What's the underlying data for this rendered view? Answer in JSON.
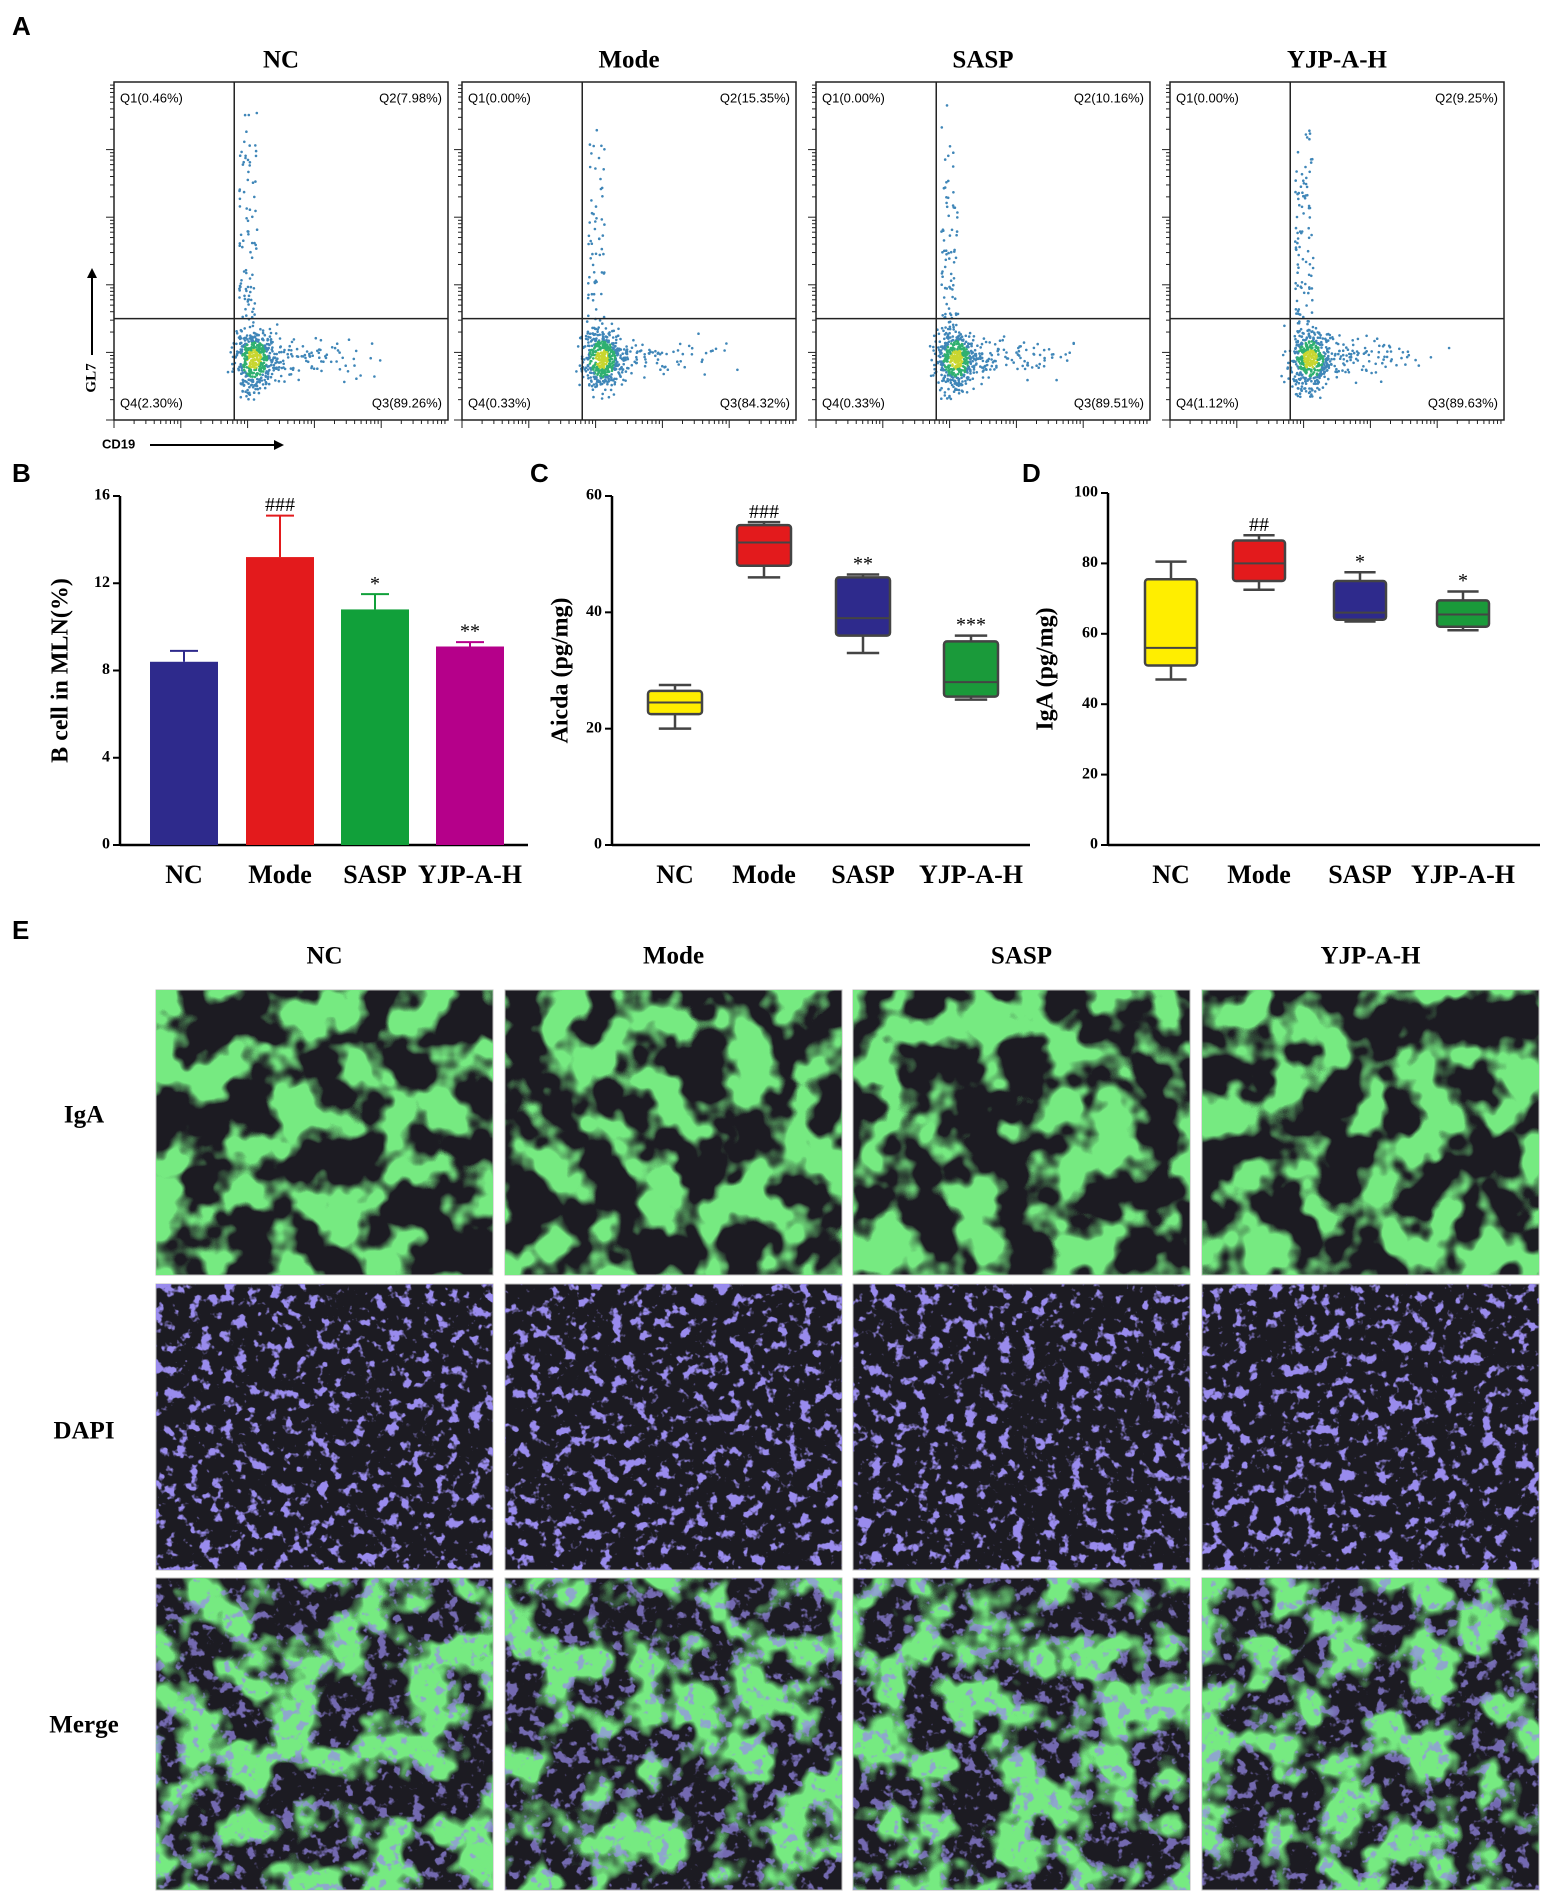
{
  "panels": [
    "A",
    "B",
    "C",
    "D",
    "E"
  ],
  "flow": {
    "groups": [
      "NC",
      "Mode",
      "SASP",
      "YJP-A-H"
    ],
    "y_label": "GL7",
    "x_label": "CD19",
    "quadrants": [
      [
        "Q1(0.46%)",
        "Q2(7.98%)",
        "Q3(89.26%)",
        "Q4(2.30%)"
      ],
      [
        "Q1(0.00%)",
        "Q2(15.35%)",
        "Q3(84.32%)",
        "Q4(0.33%)"
      ],
      [
        "Q1(0.00%)",
        "Q2(10.16%)",
        "Q3(89.51%)",
        "Q4(0.33%)"
      ],
      [
        "Q1(0.00%)",
        "Q2(9.25%)",
        "Q3(89.63%)",
        "Q4(1.12%)"
      ]
    ]
  },
  "chart_data": [
    {
      "type": "bar",
      "y_label": "B cell in MLN(%)",
      "categories": [
        "NC",
        "Mode",
        "SASP",
        "YJP-A-H"
      ],
      "values": [
        8.4,
        13.2,
        10.8,
        9.1
      ],
      "errors": [
        0.5,
        1.9,
        0.7,
        0.2
      ],
      "colors": [
        "#2e2a8c",
        "#e31a1c",
        "#11a03a",
        "#b5008a"
      ],
      "annotations": [
        null,
        "###",
        "*",
        "**"
      ],
      "ylim": [
        0,
        16
      ],
      "yticks": [
        0,
        4,
        8,
        12,
        16
      ]
    },
    {
      "type": "box",
      "y_label": "Aicda (pg/mg)",
      "categories": [
        "NC",
        "Mode",
        "SASP",
        "YJP-A-H"
      ],
      "values": [
        {
          "min": 20,
          "q1": 22.5,
          "median": 24.5,
          "q3": 26.5,
          "max": 27.5
        },
        {
          "min": 46,
          "q1": 48,
          "median": 52,
          "q3": 55,
          "max": 55.5
        },
        {
          "min": 33,
          "q1": 36,
          "median": 39,
          "q3": 46,
          "max": 46.5
        },
        {
          "min": 25,
          "q1": 25.5,
          "median": 28,
          "q3": 35,
          "max": 36
        }
      ],
      "colors": [
        "#ffee00",
        "#e31a1c",
        "#2e2a8c",
        "#1a9a3a"
      ],
      "annotations": [
        null,
        "###",
        "**",
        "***"
      ],
      "ylim": [
        0,
        60
      ],
      "yticks": [
        0,
        20,
        40,
        60
      ]
    },
    {
      "type": "box",
      "y_label": "IgA (pg/mg)",
      "categories": [
        "NC",
        "Mode",
        "SASP",
        "YJP-A-H"
      ],
      "values": [
        {
          "min": 47,
          "q1": 51,
          "median": 56,
          "q3": 75.5,
          "max": 80.5
        },
        {
          "min": 72.5,
          "q1": 75,
          "median": 80,
          "q3": 86.5,
          "max": 88
        },
        {
          "min": 63.5,
          "q1": 64,
          "median": 66,
          "q3": 75,
          "max": 77.5
        },
        {
          "min": 61,
          "q1": 62,
          "median": 65.5,
          "q3": 69.5,
          "max": 72
        }
      ],
      "colors": [
        "#ffee00",
        "#e31a1c",
        "#2e2a8c",
        "#1a9a3a"
      ],
      "annotations": [
        null,
        "##",
        "*",
        "*"
      ],
      "ylim": [
        0,
        100
      ],
      "yticks": [
        0,
        20,
        40,
        60,
        80,
        100
      ]
    }
  ],
  "images": {
    "columns": [
      "NC",
      "Mode",
      "SASP",
      "YJP-A-H"
    ],
    "rows": [
      "IgA",
      "DAPI",
      "Merge"
    ]
  }
}
